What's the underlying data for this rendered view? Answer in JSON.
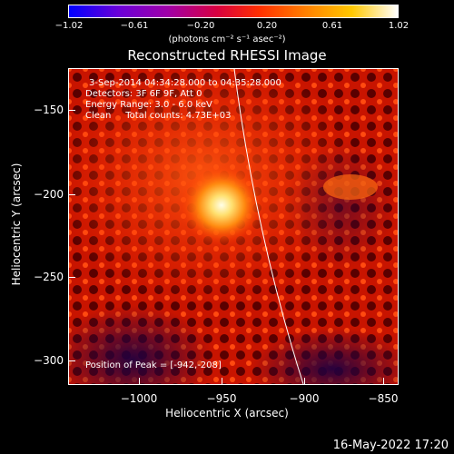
{
  "colorbar": {
    "ticks": [
      "−1.02",
      "−0.61",
      "−0.20",
      "0.20",
      "0.61",
      "1.02"
    ],
    "units": "(photons cm⁻² s⁻¹ asec⁻²)"
  },
  "title": "Reconstructed RHESSI Image",
  "info": {
    "time_range": "3-Sep-2014 04:34:28.000 to 04:35:28.000",
    "detectors": "Detectors: 3F 6F 9F, Att 0",
    "energy": "Energy Range: 3.0 - 6.0 keV",
    "clean": "Clean     Total counts: 4.73E+03",
    "peak": "Position of Peak = [-942,-208]"
  },
  "axes": {
    "xlabel": "Heliocentric X (arcsec)",
    "ylabel": "Heliocentric Y (arcsec)",
    "xticks": [
      "−1000",
      "−950",
      "−900",
      "−850"
    ],
    "yticks": [
      "−150",
      "−200",
      "−250",
      "−300"
    ]
  },
  "timestamp": "16-May-2022 17:20",
  "colors": {
    "peak": "#ffffe8",
    "background": "#000000",
    "limb_line": "#ffffff"
  }
}
